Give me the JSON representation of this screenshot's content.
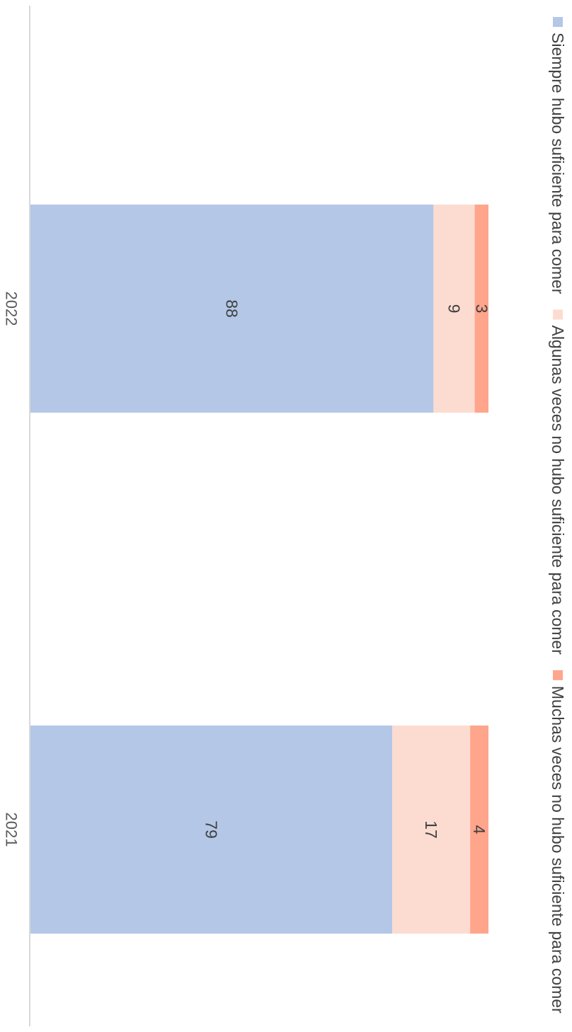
{
  "chart_data": {
    "type": "bar",
    "stacked": true,
    "orientation": "vertical",
    "categories": [
      "2021",
      "2022"
    ],
    "series": [
      {
        "name": "Siempre hubo suficiente para comer",
        "color": "#b4c7e7",
        "values": [
          79,
          88
        ]
      },
      {
        "name": "Algunas veces no hubo suficiente para comer",
        "color": "#fcdcd0",
        "values": [
          17,
          9
        ]
      },
      {
        "name": "Muchas veces no hubo suficiente para comer",
        "color": "#ffa58c",
        "values": [
          4,
          3
        ]
      }
    ],
    "ylim": [
      0,
      100
    ],
    "legend": "top",
    "grid": false,
    "data_labels": true
  }
}
